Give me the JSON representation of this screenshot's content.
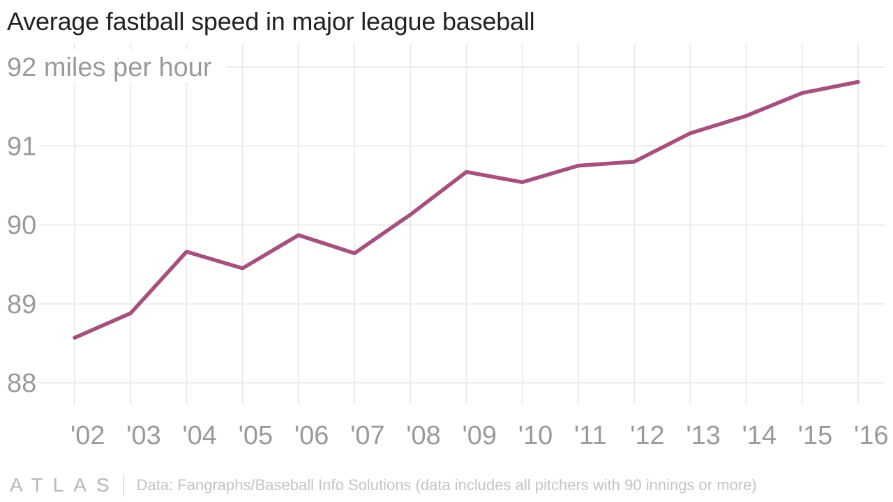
{
  "chart_data": {
    "type": "line",
    "title": "Average fastball speed in major league baseball",
    "ylabel": "",
    "y_unit_label": "miles per hour",
    "categories": [
      "'02",
      "'03",
      "'04",
      "'05",
      "'06",
      "'07",
      "'08",
      "'09",
      "'10",
      "'11",
      "'12",
      "'13",
      "'14",
      "'15",
      "'16"
    ],
    "series": [
      {
        "values": [
          88.57,
          88.88,
          89.66,
          89.45,
          89.87,
          89.64,
          90.13,
          90.67,
          90.54,
          90.75,
          90.8,
          91.16,
          91.38,
          91.67,
          91.81
        ]
      }
    ],
    "y_ticks": [
      88,
      89,
      90,
      91,
      92
    ],
    "ylim": [
      88,
      92
    ],
    "grid": true,
    "line_color": "#a5507f"
  },
  "footer": {
    "brand": "ATLAS",
    "source": "Data: Fangraphs/Baseball Info Solutions (data includes all pitchers with 90 innings or more)"
  }
}
